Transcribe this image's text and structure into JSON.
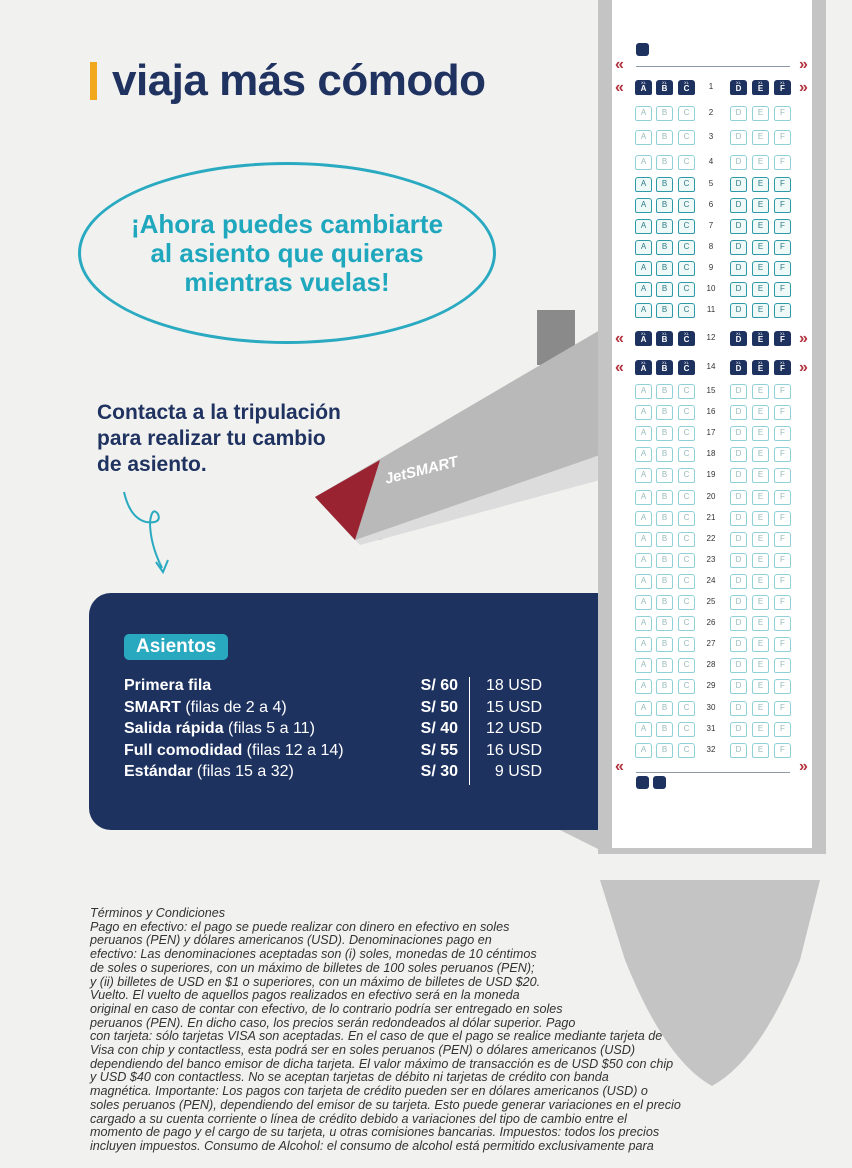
{
  "headline": "viaja más cómodo",
  "callout": [
    "¡Ahora puedes cambiarte",
    "al asiento que quieras",
    "mientras vuelas!"
  ],
  "contact": [
    "Contacta a la tripulación",
    "para realizar tu cambio",
    "de asiento."
  ],
  "brand": "JetSMART",
  "prices": {
    "title": "Asientos",
    "rows": [
      {
        "name": "Primera fila",
        "detail": "",
        "pen": "S/ 60",
        "usd": "18 USD"
      },
      {
        "name": "SMART",
        "detail": " (filas de 2 a 4)",
        "pen": "S/ 50",
        "usd": "15 USD"
      },
      {
        "name": "Salida rápida",
        "detail": " (filas 5 a 11)",
        "pen": "S/ 40",
        "usd": "12 USD"
      },
      {
        "name": "Full comodidad",
        "detail": " (filas 12 a 14)",
        "pen": "S/ 55",
        "usd": "16 USD"
      },
      {
        "name": "Estándar",
        "detail": " (filas 15 a 32)",
        "pen": "S/ 30",
        "usd": "9 USD"
      }
    ]
  },
  "seatmap": {
    "columns_left": [
      "A",
      "B",
      "C"
    ],
    "columns_right": [
      "D",
      "E",
      "F"
    ],
    "xl_label": "XL",
    "rows": [
      "1",
      "2",
      "3",
      "4",
      "5",
      "6",
      "7",
      "8",
      "9",
      "10",
      "11",
      "12",
      "14",
      "15",
      "16",
      "17",
      "18",
      "19",
      "20",
      "21",
      "22",
      "23",
      "24",
      "25",
      "26",
      "27",
      "28",
      "29",
      "30",
      "31",
      "32"
    ],
    "xl_rows": [
      "1",
      "12",
      "14"
    ],
    "exit_rows": [
      "5",
      "6",
      "7",
      "8",
      "9",
      "10",
      "11"
    ],
    "colors": {
      "xl": "#1e3260",
      "exit": "#2e9aa7",
      "standard": "#8fd1d6",
      "exit_marker": "#b2323e"
    }
  },
  "terms": [
    "Términos y Condiciones",
    "Pago en efectivo: el pago se puede realizar con dinero en efectivo en soles",
    "peruanos (PEN) y dólares americanos (USD). Denominaciones pago en",
    "efectivo: Las denominaciones aceptadas son (i) soles, monedas de 10 céntimos",
    "de soles o superiores, con un máximo de billetes de 100 soles peruanos (PEN);",
    "y (ii) billetes de USD en $1 o superiores, con un máximo de billetes de USD $20.",
    "Vuelto. El vuelto de aquellos pagos realizados en efectivo será en la moneda",
    "original en caso de contar con efectivo, de lo contrario podría ser entregado en soles",
    "peruanos (PEN). En dicho caso, los precios serán redondeados al dólar superior. Pago",
    "con tarjeta: sólo tarjetas VISA son aceptadas. En el caso de que el pago se realice mediante tarjeta de",
    "Visa con chip y contactless, esta podrá ser en soles peruanos (PEN) o dólares americanos (USD)",
    "dependiendo del banco emisor de dicha tarjeta. El valor máximo de transacción es de USD $50 con chip",
    "y USD $40 con contactless. No se aceptan tarjetas de débito ni tarjetas de crédito con banda",
    "magnética. Importante: Los pagos con tarjeta de crédito pueden ser en dólares americanos (USD) o",
    "soles peruanos (PEN), dependiendo del emisor de su tarjeta. Esto puede generar variaciones en el precio",
    "cargado a su cuenta corriente o línea de crédito debido a variaciones del tipo de cambio entre el",
    "momento de pago y el cargo de su tarjeta, u otras comisiones bancarias. Impuestos: todos los precios",
    "incluyen impuestos. Consumo de Alcohol: el consumo de alcohol está permitido exclusivamente para"
  ]
}
